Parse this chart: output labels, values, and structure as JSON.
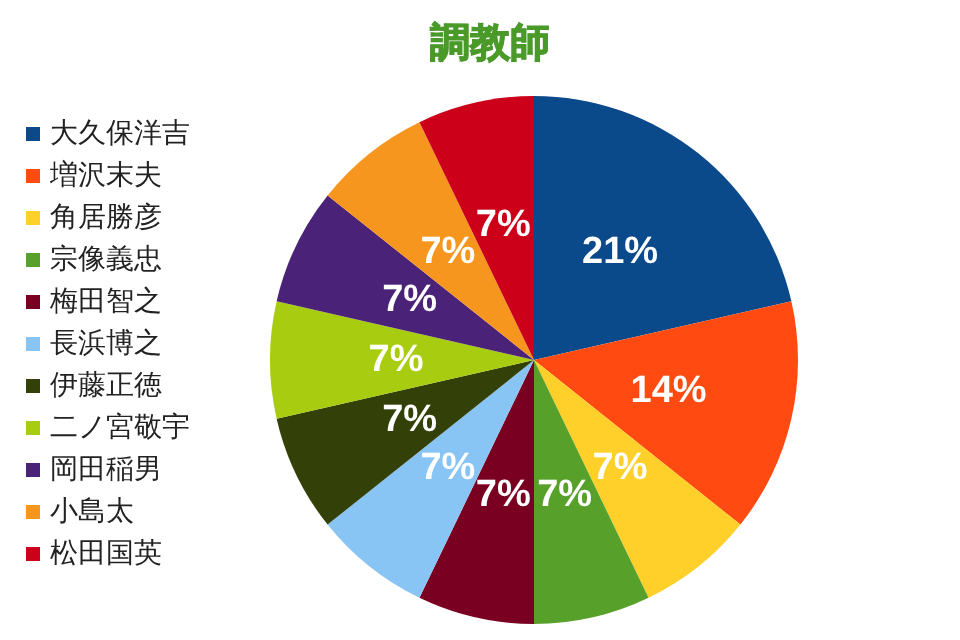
{
  "chart_data": {
    "type": "pie",
    "title": "調教師",
    "categories": [
      "大久保洋吉",
      "増沢末夫",
      "角居勝彦",
      "宗像義忠",
      "梅田智之",
      "長浜博之",
      "伊藤正徳",
      "二ノ宮敬宇",
      "岡田稲男",
      "小島太",
      "松田国英"
    ],
    "values": [
      21,
      14,
      7,
      7,
      7,
      7,
      7,
      7,
      7,
      7,
      7
    ],
    "value_labels": [
      "21%",
      "14%",
      "7%",
      "7%",
      "7%",
      "7%",
      "7%",
      "7%",
      "7%",
      "7%",
      "7%"
    ],
    "colors": [
      "#0a4a8a",
      "#ff4b12",
      "#ffd02a",
      "#57a02a",
      "#7a0022",
      "#88c4f4",
      "#334008",
      "#a8cc10",
      "#4a2278",
      "#f7961e",
      "#cc0018"
    ],
    "legend": "left"
  }
}
